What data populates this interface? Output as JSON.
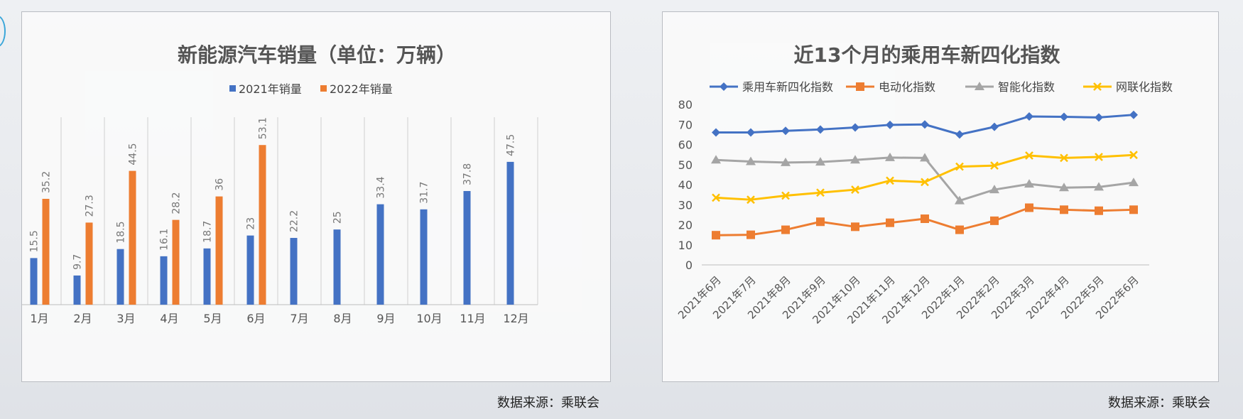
{
  "chart_data": [
    {
      "type": "bar",
      "title": "新能源汽车销量（单位：万辆）",
      "categories": [
        "1月",
        "2月",
        "3月",
        "4月",
        "5月",
        "6月",
        "7月",
        "8月",
        "9月",
        "10月",
        "11月",
        "12月"
      ],
      "series": [
        {
          "name": "2021年销量",
          "color": "#4472C4",
          "values": [
            15.5,
            9.7,
            18.5,
            16.1,
            18.7,
            23,
            22.2,
            25,
            33.4,
            31.7,
            37.8,
            47.5
          ]
        },
        {
          "name": "2022年销量",
          "color": "#ED7D31",
          "values": [
            35.2,
            27.3,
            44.5,
            28.2,
            36,
            53.1,
            null,
            null,
            null,
            null,
            null,
            null
          ]
        }
      ],
      "ylim": [
        0,
        60
      ],
      "grid": "vertical",
      "legend": "top-center"
    },
    {
      "type": "line",
      "title": "近13个月的乘用车新四化指数",
      "categories": [
        "2021年6月",
        "2021年7月",
        "2021年8月",
        "2021年9月",
        "2021年10月",
        "2021年11月",
        "2021年12月",
        "2022年1月",
        "2022年2月",
        "2022年3月",
        "2022年4月",
        "2022年5月",
        "2022年6月"
      ],
      "series": [
        {
          "name": "乘用车新四化指数",
          "color": "#4472C4",
          "marker": "diamond",
          "values": [
            66,
            66,
            66.8,
            67.5,
            68.5,
            69.8,
            70,
            65,
            68.8,
            74,
            73.8,
            73.5,
            74.8
          ]
        },
        {
          "name": "电动化指数",
          "color": "#ED7D31",
          "marker": "square",
          "values": [
            14.8,
            15,
            17.5,
            21.5,
            19,
            21,
            23,
            17.5,
            22,
            28.5,
            27.5,
            27,
            27.5
          ]
        },
        {
          "name": "智能化指数",
          "color": "#A5A5A5",
          "marker": "triangle",
          "values": [
            52.3,
            51.5,
            51,
            51.3,
            52.3,
            53.5,
            53.3,
            32,
            37.5,
            40.3,
            38.5,
            38.8,
            41
          ]
        },
        {
          "name": "网联化指数",
          "color": "#FFC000",
          "marker": "x",
          "values": [
            33.5,
            32.5,
            34.5,
            36,
            37.5,
            42,
            41.3,
            49,
            49.5,
            54.5,
            53.3,
            53.8,
            54.8
          ]
        }
      ],
      "ylim": [
        0,
        80
      ],
      "yticks": [
        0,
        10,
        20,
        30,
        40,
        50,
        60,
        70,
        80
      ],
      "grid": "none",
      "legend": "top-center"
    }
  ],
  "sources": {
    "left": "数据来源：乘联会",
    "right": "数据来源：乘联会"
  }
}
